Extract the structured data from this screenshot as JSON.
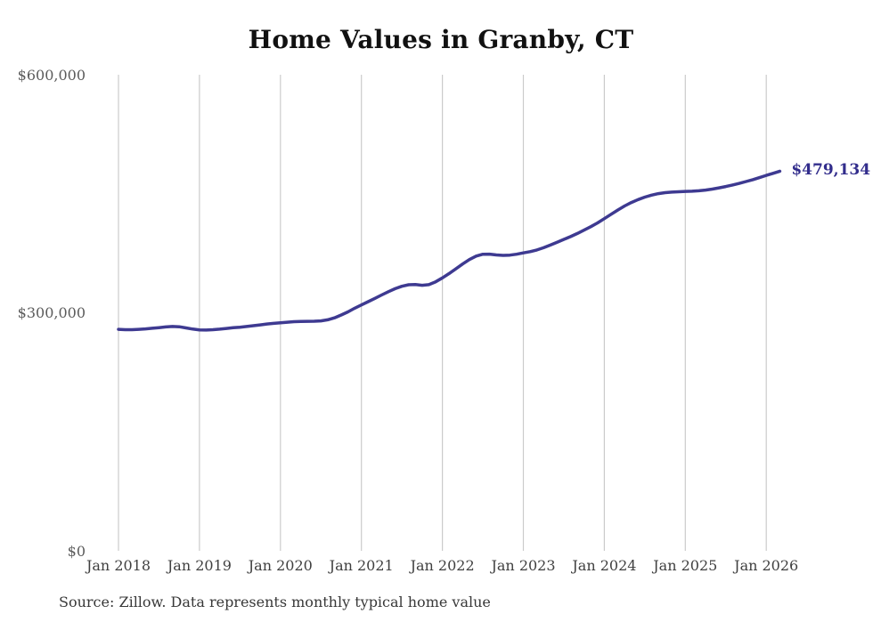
{
  "title": "Home Values in Granby, CT",
  "source_note": "Source: Zillow. Data represents monthly typical home value",
  "end_label": "$479,134",
  "colors": {
    "line": "#3e3a91",
    "end_label_text": "#322d8c",
    "gridline": "#cbcbcb",
    "title_text": "#111111",
    "y_axis_text": "#5b5b5b",
    "x_axis_text": "#3f3f3f",
    "source_text": "#383838",
    "background": "#ffffff"
  },
  "chart_data": {
    "type": "line",
    "title": "Home Values in Granby, CT",
    "xlabel": "",
    "ylabel": "",
    "ylim": [
      0,
      600000
    ],
    "grid": "vertical-only",
    "legend": "none",
    "x_monthly_start": "2018-01",
    "x_monthly_count": 99,
    "x_tick_labels": [
      "Jan 2018",
      "Jan 2019",
      "Jan 2020",
      "Jan 2021",
      "Jan 2022",
      "Jan 2023",
      "Jan 2024",
      "Jan 2025",
      "Jan 2026"
    ],
    "y_tick_labels": [
      {
        "text": "$0",
        "value": 0
      },
      {
        "text": "$300,000",
        "value": 300000
      },
      {
        "text": "$600,000",
        "value": 600000
      }
    ],
    "final_value": 479134,
    "final_value_label": "$479,134",
    "series": [
      {
        "name": "Typical home value",
        "values": [
          280000,
          279600,
          279600,
          280000,
          280600,
          281300,
          282100,
          283000,
          283600,
          283200,
          281800,
          280300,
          279300,
          279100,
          279500,
          280200,
          281100,
          282000,
          282700,
          283600,
          284600,
          285600,
          286700,
          287500,
          288200,
          289000,
          289600,
          290000,
          290100,
          290200,
          290700,
          292000,
          294500,
          298000,
          302000,
          306500,
          310700,
          314800,
          319000,
          323200,
          327400,
          331200,
          334200,
          336100,
          336400,
          335500,
          336300,
          339800,
          344800,
          350300,
          356200,
          362200,
          367800,
          372200,
          374600,
          374700,
          373700,
          373100,
          373400,
          374600,
          376300,
          377800,
          379900,
          382700,
          386100,
          389700,
          393300,
          396800,
          400700,
          404900,
          409300,
          414000,
          419400,
          424900,
          430300,
          435300,
          439700,
          443400,
          446500,
          449000,
          450900,
          452100,
          452800,
          453200,
          453700,
          453900,
          454400,
          455300,
          456600,
          458100,
          459800,
          461700,
          463800,
          466100,
          468500,
          471000,
          473800,
          476400,
          479134
        ]
      }
    ]
  }
}
